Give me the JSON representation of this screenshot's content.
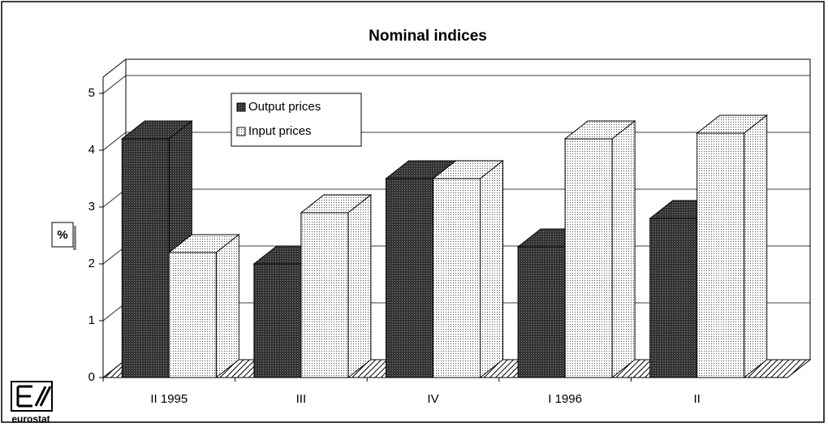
{
  "chart_data": {
    "type": "bar3d",
    "title": "Nominal indices",
    "y_label": "%",
    "categories": [
      "II 1995",
      "III",
      "IV",
      "I 1996",
      "II"
    ],
    "series": [
      {
        "name": "Output prices",
        "color": "#333333",
        "values": [
          4.2,
          2.0,
          3.5,
          2.3,
          2.8
        ]
      },
      {
        "name": "Input prices",
        "color": "#ffffff",
        "values": [
          2.2,
          2.9,
          3.5,
          4.2,
          4.3
        ]
      }
    ],
    "ylim": [
      0,
      5
    ],
    "yticks": [
      0,
      1,
      2,
      3,
      4,
      5
    ],
    "grid": true,
    "legend": "top-left"
  },
  "logo_text": "eurostat"
}
